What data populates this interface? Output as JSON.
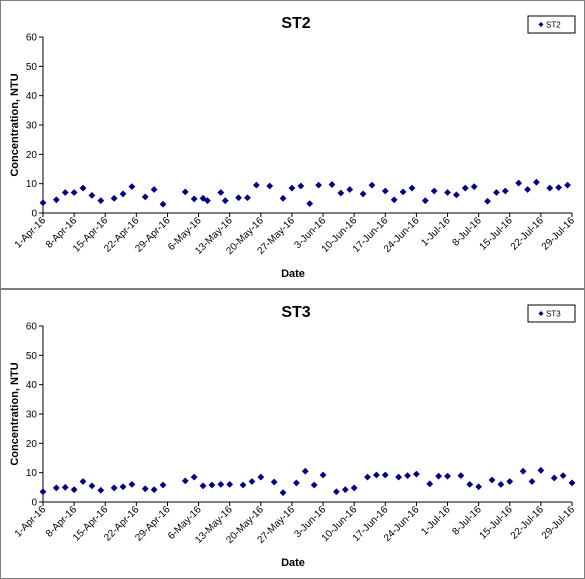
{
  "colors": {
    "series": "#000080",
    "axis": "#000000",
    "frame": "#7f7f7f"
  },
  "chart_data": [
    {
      "type": "scatter",
      "title": "ST2",
      "xlabel": "Date",
      "ylabel": "Concentration, NTU",
      "ylim": [
        0,
        60
      ],
      "yticks": [
        0,
        10,
        20,
        30,
        40,
        50,
        60
      ],
      "xlim": [
        "2016-04-01",
        "2016-07-29"
      ],
      "xtick_labels": [
        "1-Apr-16",
        "8-Apr-16",
        "15-Apr-16",
        "22-Apr-16",
        "29-Apr-16",
        "6-May-16",
        "13-May-16",
        "20-May-16",
        "27-May-16",
        "3-Jun-16",
        "10-Jun-16",
        "17-Jun-16",
        "24-Jun-16",
        "1-Jul-16",
        "8-Jul-16",
        "15-Jul-16",
        "22-Jul-16",
        "29-Jul-16"
      ],
      "grid": false,
      "legend": "top-right",
      "series": [
        {
          "name": "ST2",
          "x": [
            "2016-04-01",
            "2016-04-04",
            "2016-04-06",
            "2016-04-08",
            "2016-04-10",
            "2016-04-12",
            "2016-04-14",
            "2016-04-17",
            "2016-04-19",
            "2016-04-21",
            "2016-04-24",
            "2016-04-26",
            "2016-04-28",
            "2016-05-03",
            "2016-05-05",
            "2016-05-07",
            "2016-05-08",
            "2016-05-11",
            "2016-05-12",
            "2016-05-15",
            "2016-05-17",
            "2016-05-19",
            "2016-05-22",
            "2016-05-25",
            "2016-05-27",
            "2016-05-29",
            "2016-05-31",
            "2016-06-02",
            "2016-06-05",
            "2016-06-07",
            "2016-06-09",
            "2016-06-12",
            "2016-06-14",
            "2016-06-17",
            "2016-06-19",
            "2016-06-21",
            "2016-06-23",
            "2016-06-26",
            "2016-06-28",
            "2016-07-01",
            "2016-07-03",
            "2016-07-05",
            "2016-07-07",
            "2016-07-10",
            "2016-07-12",
            "2016-07-14",
            "2016-07-17",
            "2016-07-19",
            "2016-07-21",
            "2016-07-24",
            "2016-07-26",
            "2016-07-28"
          ],
          "y": [
            3.5,
            4.5,
            7,
            7,
            8.5,
            6,
            4.2,
            5,
            6.5,
            9,
            5.5,
            8,
            3,
            7.2,
            4.8,
            5,
            4.2,
            7,
            4.2,
            5.2,
            5.2,
            9.5,
            9.2,
            5,
            8.5,
            9.2,
            3.2,
            9.5,
            9.7,
            6.8,
            8,
            6.5,
            9.5,
            7.5,
            4.5,
            7.2,
            8.5,
            4.2,
            7.5,
            7,
            6.2,
            8.5,
            9,
            4,
            7,
            7.5,
            10.2,
            8,
            10.5,
            8.5,
            8.7,
            9.5
          ]
        }
      ]
    },
    {
      "type": "scatter",
      "title": "ST3",
      "xlabel": "Date",
      "ylabel": "Concentration, NTU",
      "ylim": [
        0,
        60
      ],
      "yticks": [
        0,
        10,
        20,
        30,
        40,
        50,
        60
      ],
      "xlim": [
        "2016-04-01",
        "2016-07-29"
      ],
      "xtick_labels": [
        "1-Apr-16",
        "8-Apr-16",
        "15-Apr-16",
        "22-Apr-16",
        "29-Apr-16",
        "6-May-16",
        "13-May-16",
        "20-May-16",
        "27-May-16",
        "3-Jun-16",
        "10-Jun-16",
        "17-Jun-16",
        "24-Jun-16",
        "1-Jul-16",
        "8-Jul-16",
        "15-Jul-16",
        "22-Jul-16",
        "29-Jul-16"
      ],
      "grid": false,
      "legend": "top-right",
      "series": [
        {
          "name": "ST3",
          "x": [
            "2016-04-01",
            "2016-04-04",
            "2016-04-06",
            "2016-04-08",
            "2016-04-10",
            "2016-04-12",
            "2016-04-14",
            "2016-04-17",
            "2016-04-19",
            "2016-04-21",
            "2016-04-24",
            "2016-04-26",
            "2016-04-28",
            "2016-05-03",
            "2016-05-05",
            "2016-05-07",
            "2016-05-09",
            "2016-05-11",
            "2016-05-13",
            "2016-05-16",
            "2016-05-18",
            "2016-05-20",
            "2016-05-23",
            "2016-05-25",
            "2016-05-28",
            "2016-05-30",
            "2016-06-01",
            "2016-06-03",
            "2016-06-06",
            "2016-06-08",
            "2016-06-10",
            "2016-06-13",
            "2016-06-15",
            "2016-06-17",
            "2016-06-20",
            "2016-06-22",
            "2016-06-24",
            "2016-06-27",
            "2016-06-29",
            "2016-07-01",
            "2016-07-04",
            "2016-07-06",
            "2016-07-08",
            "2016-07-11",
            "2016-07-13",
            "2016-07-15",
            "2016-07-18",
            "2016-07-20",
            "2016-07-22",
            "2016-07-25",
            "2016-07-27",
            "2016-07-29"
          ],
          "y": [
            3.5,
            4.8,
            5,
            4.2,
            7,
            5.5,
            4,
            4.8,
            5.2,
            6,
            4.5,
            4.2,
            5.8,
            7.2,
            8.5,
            5.5,
            5.8,
            6,
            6,
            5.8,
            7,
            8.5,
            6.8,
            3.2,
            6.5,
            10.5,
            5.8,
            9.2,
            3.5,
            4.2,
            4.8,
            8.5,
            9.2,
            9.2,
            8.5,
            9,
            9.5,
            6.2,
            8.8,
            8.8,
            9,
            6,
            5.2,
            7.5,
            6,
            7,
            10.5,
            7,
            10.8,
            8.2,
            9,
            6.5
          ]
        }
      ]
    }
  ]
}
